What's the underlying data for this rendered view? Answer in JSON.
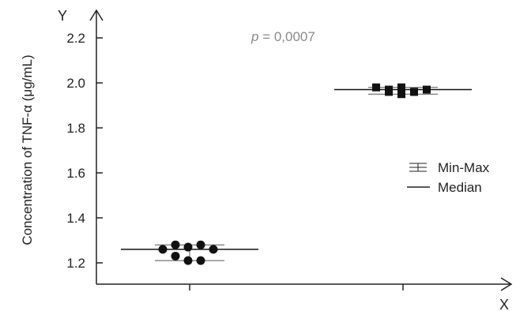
{
  "chart_data": {
    "type": "scatter",
    "x_axis_label": "X",
    "y_axis_label": "Y",
    "ylabel": "Concentration of TNF-α (μg/mL)",
    "ylim": [
      1.15,
      2.3
    ],
    "yticks": [
      "1.2",
      "1.4",
      "1.6",
      "1.8",
      "2.0",
      "2.2"
    ],
    "groups": [
      {
        "marker": "circle",
        "points": [
          1.26,
          1.28,
          1.23,
          1.27,
          1.21,
          1.28,
          1.21,
          1.26
        ],
        "median": 1.26,
        "min": 1.21,
        "max": 1.28
      },
      {
        "marker": "square",
        "points": [
          1.98,
          1.97,
          1.96,
          1.95,
          1.98,
          1.96,
          1.96,
          1.97
        ],
        "median": 1.97,
        "min": 1.95,
        "max": 1.98
      }
    ],
    "annotation": {
      "prefix": "p",
      "rest": " = 0,0007"
    },
    "legend": {
      "position": "right",
      "items": [
        "Min-Max",
        "Median"
      ]
    },
    "colors": {
      "markers": "#111111",
      "axes": "#222222",
      "annotation": "#8a8a8a"
    }
  }
}
